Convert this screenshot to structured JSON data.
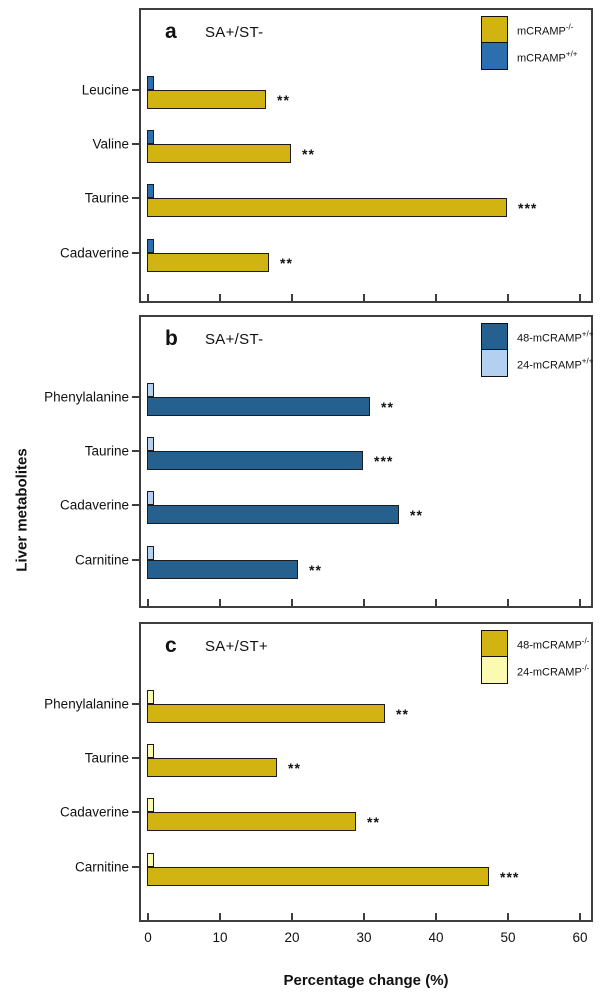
{
  "figure": {
    "x_axis_label": "Percentage change (%)",
    "y_axis_label": "Liver metabolites",
    "x_ticks": [
      0,
      10,
      20,
      30,
      40,
      50,
      60
    ],
    "border_color": "#3e3e3e",
    "bar_border_color": "#1c1c1c"
  },
  "chart_data": [
    {
      "type": "bar",
      "orientation": "horizontal",
      "panel_label": "a",
      "title": "SA+/ST-",
      "categories": [
        "Leucine",
        "Valine",
        "Taurine",
        "Cadaverine"
      ],
      "series": [
        {
          "name": "mCRAMP-/-",
          "label": {
            "base": "mCRAMP",
            "sup": "-/-"
          },
          "color": "#d1b411",
          "values": [
            16.5,
            20,
            50,
            17
          ],
          "significance": [
            "**",
            "**",
            "***",
            "**"
          ]
        },
        {
          "name": "mCRAMP+/+",
          "label": {
            "base": "mCRAMP",
            "sup": "+/+"
          },
          "color": "#2d6fae",
          "values": [
            1,
            1,
            1,
            1
          ],
          "significance": [
            "",
            "",
            "",
            ""
          ]
        }
      ],
      "xlim": [
        0,
        60
      ],
      "legend_position": "top-right"
    },
    {
      "type": "bar",
      "orientation": "horizontal",
      "panel_label": "b",
      "title": "SA+/ST-",
      "categories": [
        "Phenylalanine",
        "Taurine",
        "Cadaverine",
        "Carnitine"
      ],
      "series": [
        {
          "name": "48-mCRAMP+/+",
          "label": {
            "base": "48-mCRAMP",
            "sup": "+/+"
          },
          "color": "#25608f",
          "values": [
            31,
            30,
            35,
            21
          ],
          "significance": [
            "**",
            "***",
            "**",
            "**"
          ]
        },
        {
          "name": "24-mCRAMP+/+",
          "label": {
            "base": "24-mCRAMP",
            "sup": "+/+"
          },
          "color": "#b4d0f0",
          "values": [
            1,
            1,
            1,
            1
          ],
          "significance": [
            "",
            "",
            "",
            ""
          ]
        }
      ],
      "xlim": [
        0,
        60
      ],
      "legend_position": "top-right"
    },
    {
      "type": "bar",
      "orientation": "horizontal",
      "panel_label": "c",
      "title": "SA+/ST+",
      "categories": [
        "Phenylalanine",
        "Taurine",
        "Cadaverine",
        "Carnitine"
      ],
      "series": [
        {
          "name": "48-mCRAMP-/-",
          "label": {
            "base": "48-mCRAMP",
            "sup": "-/-"
          },
          "color": "#d1b411",
          "values": [
            33,
            18,
            29,
            47.5
          ],
          "significance": [
            "**",
            "**",
            "**",
            "***"
          ]
        },
        {
          "name": "24-mCRAMP-/-",
          "label": {
            "base": "24-mCRAMP",
            "sup": "-/-"
          },
          "color": "#fafab0",
          "values": [
            1,
            1,
            1,
            1
          ],
          "significance": [
            "",
            "",
            "",
            ""
          ]
        }
      ],
      "xlim": [
        0,
        60
      ],
      "legend_position": "top-right"
    }
  ]
}
